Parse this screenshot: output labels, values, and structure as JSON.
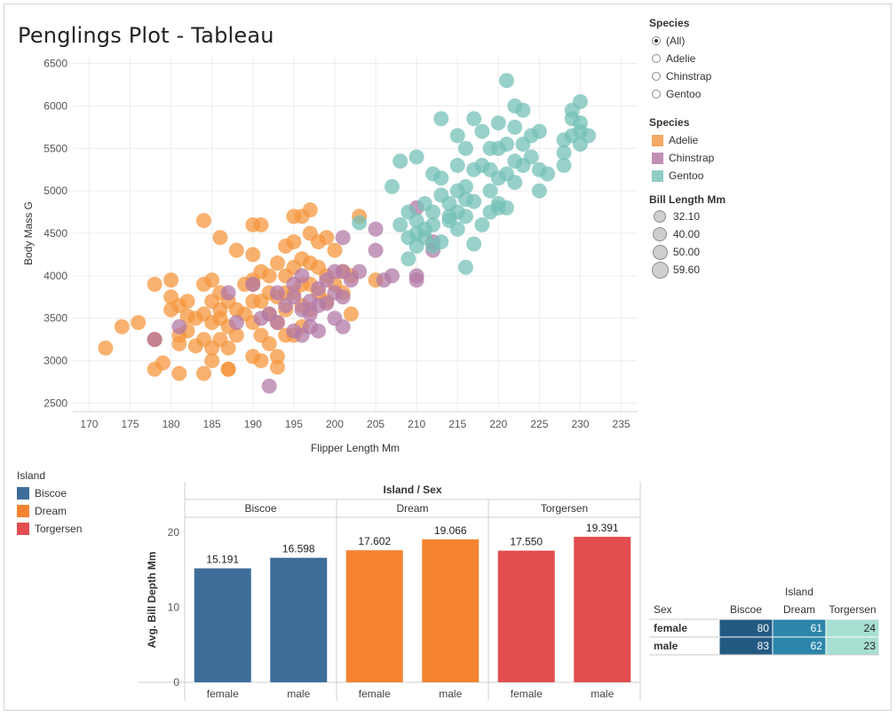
{
  "title": "Penglings Plot - Tableau",
  "chart_data": [
    {
      "type": "scatter",
      "xlabel": "Flipper Length Mm",
      "ylabel": "Body Mass G",
      "xlim": [
        168,
        237
      ],
      "ylim": [
        2400,
        6600
      ],
      "xticks": [
        170,
        175,
        180,
        185,
        190,
        195,
        200,
        205,
        210,
        215,
        220,
        225,
        230,
        235
      ],
      "yticks": [
        2500,
        3000,
        3500,
        4000,
        4500,
        5000,
        5500,
        6000,
        6500
      ],
      "grid": true,
      "series": [
        {
          "name": "Adelie",
          "points": [
            [
              172,
              3150
            ],
            [
              174,
              3400
            ],
            [
              176,
              3450
            ],
            [
              178,
              3900
            ],
            [
              178,
              3250
            ],
            [
              178,
              2900
            ],
            [
              179,
              2975
            ],
            [
              180,
              3950
            ],
            [
              180,
              3600
            ],
            [
              180,
              3750
            ],
            [
              181,
              3200
            ],
            [
              181,
              3300
            ],
            [
              181,
              2850
            ],
            [
              182,
              3700
            ],
            [
              182,
              3525
            ],
            [
              182,
              3350
            ],
            [
              183,
              3175
            ],
            [
              184,
              4650
            ],
            [
              184,
              3900
            ],
            [
              184,
              3550
            ],
            [
              184,
              3250
            ],
            [
              184,
              2850
            ],
            [
              185,
              3950
            ],
            [
              185,
              3700
            ],
            [
              185,
              3450
            ],
            [
              185,
              3150
            ],
            [
              185,
              3000
            ],
            [
              186,
              4450
            ],
            [
              186,
              3800
            ],
            [
              186,
              3500
            ],
            [
              186,
              3250
            ],
            [
              187,
              3700
            ],
            [
              187,
              3400
            ],
            [
              187,
              3150
            ],
            [
              187,
              2900
            ],
            [
              188,
              4300
            ],
            [
              188,
              3600
            ],
            [
              188,
              3300
            ],
            [
              189,
              3900
            ],
            [
              189,
              3550
            ],
            [
              190,
              4600
            ],
            [
              190,
              4250
            ],
            [
              190,
              3950
            ],
            [
              190,
              3700
            ],
            [
              190,
              3450
            ],
            [
              190,
              3050
            ],
            [
              191,
              4600
            ],
            [
              191,
              4050
            ],
            [
              191,
              3700
            ],
            [
              191,
              3300
            ],
            [
              191,
              3000
            ],
            [
              192,
              4000
            ],
            [
              192,
              3800
            ],
            [
              192,
              3550
            ],
            [
              192,
              3200
            ],
            [
              193,
              4150
            ],
            [
              193,
              3750
            ],
            [
              193,
              3450
            ],
            [
              193,
              3050
            ],
            [
              194,
              4350
            ],
            [
              194,
              4000
            ],
            [
              194,
              3800
            ],
            [
              194,
              3600
            ],
            [
              194,
              3300
            ],
            [
              195,
              4700
            ],
            [
              195,
              4400
            ],
            [
              195,
              4100
            ],
            [
              195,
              3800
            ],
            [
              195,
              3300
            ],
            [
              196,
              4700
            ],
            [
              196,
              4200
            ],
            [
              196,
              3900
            ],
            [
              196,
              3650
            ],
            [
              196,
              3400
            ],
            [
              197,
              4500
            ],
            [
              197,
              4150
            ],
            [
              197,
              3900
            ],
            [
              197,
              3600
            ],
            [
              198,
              4400
            ],
            [
              198,
              4100
            ],
            [
              198,
              3800
            ],
            [
              199,
              4450
            ],
            [
              199,
              4000
            ],
            [
              199,
              3700
            ],
            [
              200,
              4300
            ],
            [
              200,
              3900
            ],
            [
              201,
              4050
            ],
            [
              201,
              3800
            ],
            [
              202,
              4000
            ],
            [
              202,
              3550
            ],
            [
              203,
              4700
            ],
            [
              205,
              3950
            ],
            [
              187,
              2900
            ],
            [
              178,
              3250
            ],
            [
              193,
              2925
            ],
            [
              190,
              3900
            ],
            [
              186,
              3600
            ],
            [
              181,
              3650
            ],
            [
              183,
              3500
            ],
            [
              197,
              4775
            ]
          ]
        },
        {
          "name": "Chinstrap",
          "points": [
            [
              178,
              3250
            ],
            [
              181,
              3400
            ],
            [
              187,
              3800
            ],
            [
              188,
              3450
            ],
            [
              190,
              3900
            ],
            [
              191,
              3500
            ],
            [
              192,
              3550
            ],
            [
              192,
              2700
            ],
            [
              193,
              3800
            ],
            [
              193,
              3450
            ],
            [
              194,
              3650
            ],
            [
              195,
              3350
            ],
            [
              195,
              3750
            ],
            [
              195,
              3900
            ],
            [
              196,
              4000
            ],
            [
              196,
              3600
            ],
            [
              196,
              3300
            ],
            [
              197,
              3700
            ],
            [
              197,
              3400
            ],
            [
              197,
              3550
            ],
            [
              198,
              3850
            ],
            [
              198,
              3650
            ],
            [
              198,
              3350
            ],
            [
              199,
              3950
            ],
            [
              199,
              3675
            ],
            [
              200,
              4050
            ],
            [
              200,
              3800
            ],
            [
              200,
              3500
            ],
            [
              201,
              4450
            ],
            [
              201,
              4050
            ],
            [
              201,
              3750
            ],
            [
              201,
              3400
            ],
            [
              202,
              3950
            ],
            [
              203,
              4050
            ],
            [
              205,
              4300
            ],
            [
              205,
              4550
            ],
            [
              206,
              3950
            ],
            [
              207,
              4000
            ],
            [
              210,
              4800
            ],
            [
              210,
              3950
            ],
            [
              210,
              4000
            ],
            [
              212,
              4300
            ],
            [
              212,
              4400
            ]
          ]
        },
        {
          "name": "Gentoo",
          "points": [
            [
              203,
              4625
            ],
            [
              207,
              5050
            ],
            [
              208,
              5350
            ],
            [
              208,
              4600
            ],
            [
              209,
              4200
            ],
            [
              209,
              4450
            ],
            [
              209,
              4750
            ],
            [
              210,
              5400
            ],
            [
              210,
              4650
            ],
            [
              210,
              4350
            ],
            [
              210,
              4500
            ],
            [
              211,
              4850
            ],
            [
              211,
              4550
            ],
            [
              211,
              4450
            ],
            [
              212,
              5200
            ],
            [
              212,
              4750
            ],
            [
              212,
              4600
            ],
            [
              213,
              5850
            ],
            [
              213,
              5150
            ],
            [
              213,
              4950
            ],
            [
              213,
              4400
            ],
            [
              214,
              4700
            ],
            [
              214,
              4650
            ],
            [
              214,
              4850
            ],
            [
              215,
              5650
            ],
            [
              215,
              5300
            ],
            [
              215,
              5000
            ],
            [
              215,
              4750
            ],
            [
              215,
              4550
            ],
            [
              216,
              5500
            ],
            [
              216,
              5050
            ],
            [
              216,
              4900
            ],
            [
              216,
              4700
            ],
            [
              216,
              4100
            ],
            [
              217,
              5850
            ],
            [
              217,
              5250
            ],
            [
              217,
              4875
            ],
            [
              217,
              4375
            ],
            [
              218,
              5700
            ],
            [
              218,
              5300
            ],
            [
              218,
              4600
            ],
            [
              219,
              5500
            ],
            [
              219,
              5250
            ],
            [
              219,
              5000
            ],
            [
              219,
              4750
            ],
            [
              220,
              5800
            ],
            [
              220,
              5500
            ],
            [
              220,
              5150
            ],
            [
              220,
              4800
            ],
            [
              220,
              4850
            ],
            [
              221,
              6300
            ],
            [
              221,
              5550
            ],
            [
              221,
              5200
            ],
            [
              221,
              4800
            ],
            [
              222,
              6000
            ],
            [
              222,
              5750
            ],
            [
              222,
              5350
            ],
            [
              222,
              5100
            ],
            [
              223,
              5950
            ],
            [
              223,
              5550
            ],
            [
              223,
              5300
            ],
            [
              224,
              5650
            ],
            [
              224,
              5400
            ],
            [
              225,
              5700
            ],
            [
              225,
              5250
            ],
            [
              225,
              5000
            ],
            [
              226,
              5200
            ],
            [
              228,
              5600
            ],
            [
              228,
              5450
            ],
            [
              229,
              5950
            ],
            [
              229,
              5850
            ],
            [
              229,
              5650
            ],
            [
              230,
              6050
            ],
            [
              230,
              5800
            ],
            [
              230,
              5700
            ],
            [
              230,
              5550
            ],
            [
              231,
              5650
            ],
            [
              228,
              5300
            ],
            [
              212,
              4350
            ]
          ]
        }
      ]
    },
    {
      "type": "bar",
      "title": "Island / Sex",
      "ylabel": "Avg. Bill Depth Mm",
      "ylim": [
        0,
        22
      ],
      "yticks": [
        0,
        10,
        20
      ],
      "groups": [
        "Biscoe",
        "Dream",
        "Torgersen"
      ],
      "categories": [
        "female",
        "male"
      ],
      "series": [
        {
          "name": "Biscoe",
          "values": [
            15.191,
            16.598
          ],
          "labels": [
            "15.191",
            "16.598"
          ]
        },
        {
          "name": "Dream",
          "values": [
            17.602,
            19.066
          ],
          "labels": [
            "17.602",
            "19.066"
          ]
        },
        {
          "name": "Torgersen",
          "values": [
            17.55,
            19.391
          ],
          "labels": [
            "17.550",
            "19.391"
          ]
        }
      ]
    },
    {
      "type": "table",
      "title": "Island",
      "row_header": "Sex",
      "columns": [
        "Biscoe",
        "Dream",
        "Torgersen"
      ],
      "rows": [
        {
          "label": "female",
          "values": [
            80,
            61,
            24
          ]
        },
        {
          "label": "male",
          "values": [
            83,
            62,
            23
          ]
        }
      ]
    }
  ],
  "filter": {
    "title": "Species",
    "options": [
      {
        "label": "(All)",
        "selected": true
      },
      {
        "label": "Adelie",
        "selected": false
      },
      {
        "label": "Chinstrap",
        "selected": false
      },
      {
        "label": "Gentoo",
        "selected": false
      }
    ]
  },
  "species_legend": {
    "title": "Species",
    "items": [
      {
        "label": "Adelie",
        "color": "#f5a867"
      },
      {
        "label": "Chinstrap",
        "color": "#c08fb6"
      },
      {
        "label": "Gentoo",
        "color": "#8fcdc5"
      }
    ]
  },
  "size_legend": {
    "title": "Bill Length Mm",
    "items": [
      {
        "label": "32.10"
      },
      {
        "label": "40.00"
      },
      {
        "label": "50.00"
      },
      {
        "label": "59.60"
      }
    ]
  },
  "island_legend": {
    "title": "Island",
    "items": [
      {
        "label": "Biscoe",
        "color": "#3e6d9a"
      },
      {
        "label": "Dream",
        "color": "#f58330"
      },
      {
        "label": "Torgersen",
        "color": "#e24d50"
      }
    ]
  },
  "point_colors": {
    "Adelie": "#f5973f",
    "Chinstrap": "#b37ba8",
    "Gentoo": "#76c2b8"
  },
  "table_colors": {
    "high": "#235a82",
    "mid": "#2c86a9",
    "low": "#a8dfd3"
  }
}
